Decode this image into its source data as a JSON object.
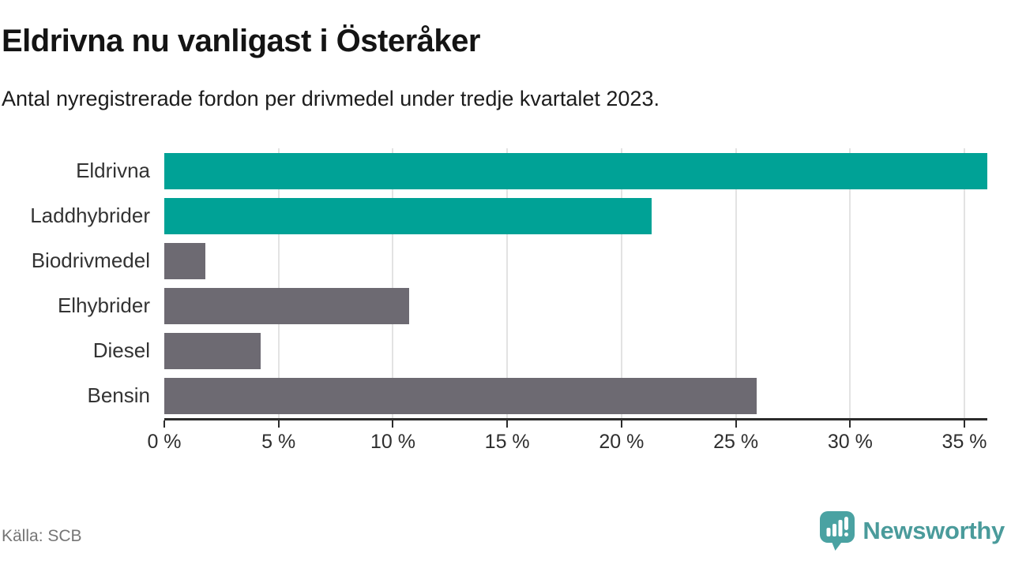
{
  "header": {
    "title": "Eldrivna nu vanligast i Österåker",
    "subtitle": "Antal nyregistrerade fordon per drivmedel under tredje kvartalet 2023."
  },
  "footer": {
    "source": "Källa: SCB",
    "logo_text": "Newsworthy",
    "logo_icon": "bar-chart-speech-bubble-icon"
  },
  "colors": {
    "highlight_bar": "#00a296",
    "default_bar": "#6d6a72",
    "gridline": "#e3e3e3",
    "axis": "#2b2b2b",
    "tick_label": "#2e2e2e",
    "category_label": "#333333",
    "source_text": "#757575",
    "logo": "#4a9b9b"
  },
  "chart_data": {
    "type": "bar",
    "orientation": "horizontal",
    "title": "Eldrivna nu vanligast i Österåker",
    "subtitle": "Antal nyregistrerade fordon per drivmedel under tredje kvartalet 2023.",
    "unit": "%",
    "categories": [
      "Eldrivna",
      "Laddhybrider",
      "Biodrivmedel",
      "Elhybrider",
      "Diesel",
      "Bensin"
    ],
    "values": [
      36.0,
      21.3,
      1.8,
      10.7,
      4.2,
      25.9
    ],
    "bar_colors": [
      "#00a296",
      "#00a296",
      "#6d6a72",
      "#6d6a72",
      "#6d6a72",
      "#6d6a72"
    ],
    "xlim": [
      0,
      36
    ],
    "x_ticks": [
      0,
      5,
      10,
      15,
      20,
      25,
      30,
      35
    ],
    "x_tick_labels": [
      "0 %",
      "5 %",
      "10 %",
      "15 %",
      "20 %",
      "25 %",
      "30 %",
      "35 %"
    ],
    "grid": true,
    "legend": false
  }
}
